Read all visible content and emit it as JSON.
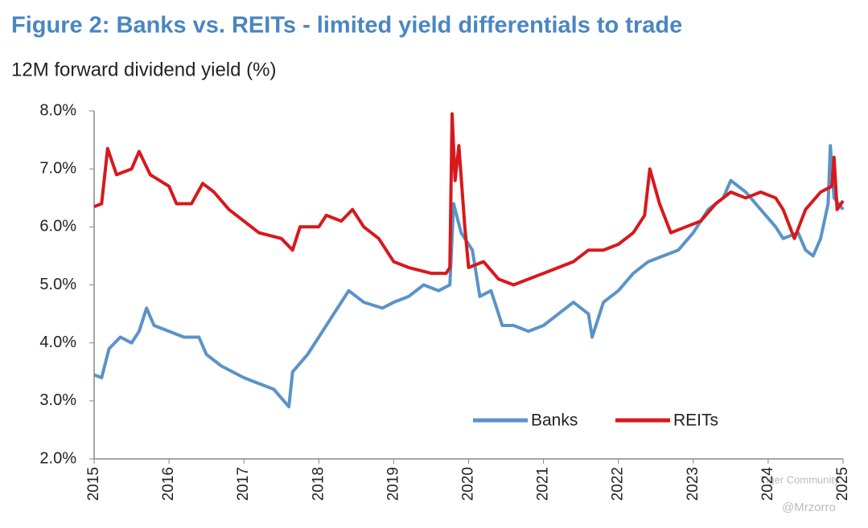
{
  "chart_data": {
    "type": "line",
    "title": "Figure 2: Banks vs. REITs - limited yield differentials to trade",
    "subtitle": "12M forward dividend yield (%)",
    "watermark": [
      "Tiger Community",
      "@Mrzorro"
    ],
    "xlim": [
      2015,
      2025
    ],
    "xticks": [
      2015,
      2016,
      2017,
      2018,
      2019,
      2020,
      2021,
      2022,
      2023,
      2024,
      2025
    ],
    "ylim": [
      2,
      8
    ],
    "yticks": [
      {
        "value": 2,
        "label": "2.0%"
      },
      {
        "value": 3,
        "label": "3.0%"
      },
      {
        "value": 4,
        "label": "4.0%"
      },
      {
        "value": 5,
        "label": "5.0%"
      },
      {
        "value": 6,
        "label": "6.0%"
      },
      {
        "value": 7,
        "label": "7.0%"
      },
      {
        "value": 8,
        "label": "8.0%"
      }
    ],
    "grid": false,
    "legend": "lower right",
    "series": [
      {
        "name": "Banks",
        "color": "#5b93c7",
        "x": [
          2015.0,
          2015.1,
          2015.2,
          2015.35,
          2015.5,
          2015.6,
          2015.7,
          2015.8,
          2016.0,
          2016.2,
          2016.4,
          2016.5,
          2016.7,
          2017.0,
          2017.2,
          2017.4,
          2017.6,
          2017.65,
          2017.85,
          2018.0,
          2018.2,
          2018.4,
          2018.6,
          2018.85,
          2019.0,
          2019.2,
          2019.4,
          2019.6,
          2019.75,
          2019.8,
          2019.9,
          2020.05,
          2020.15,
          2020.3,
          2020.45,
          2020.6,
          2020.8,
          2021.0,
          2021.2,
          2021.4,
          2021.6,
          2021.65,
          2021.8,
          2022.0,
          2022.2,
          2022.4,
          2022.6,
          2022.8,
          2023.0,
          2023.2,
          2023.4,
          2023.5,
          2023.7,
          2023.9,
          2024.1,
          2024.2,
          2024.4,
          2024.5,
          2024.6,
          2024.7,
          2024.8,
          2024.83,
          2024.88,
          2025.0
        ],
        "values": [
          3.45,
          3.4,
          3.9,
          4.1,
          4.0,
          4.2,
          4.6,
          4.3,
          4.2,
          4.1,
          4.1,
          3.8,
          3.6,
          3.4,
          3.3,
          3.2,
          2.9,
          3.5,
          3.8,
          4.1,
          4.5,
          4.9,
          4.7,
          4.6,
          4.7,
          4.8,
          5.0,
          4.9,
          5.0,
          6.4,
          5.9,
          5.6,
          4.8,
          4.9,
          4.3,
          4.3,
          4.2,
          4.3,
          4.5,
          4.7,
          4.5,
          4.1,
          4.7,
          4.9,
          5.2,
          5.4,
          5.5,
          5.6,
          5.9,
          6.3,
          6.5,
          6.8,
          6.6,
          6.3,
          6.0,
          5.8,
          5.9,
          5.6,
          5.5,
          5.8,
          6.4,
          7.4,
          6.5,
          6.3
        ]
      },
      {
        "name": "REITs",
        "color": "#d7191c",
        "x": [
          2015.0,
          2015.1,
          2015.18,
          2015.3,
          2015.5,
          2015.6,
          2015.75,
          2016.0,
          2016.1,
          2016.3,
          2016.45,
          2016.6,
          2016.8,
          2017.0,
          2017.2,
          2017.5,
          2017.65,
          2017.75,
          2018.0,
          2018.1,
          2018.3,
          2018.45,
          2018.6,
          2018.8,
          2019.0,
          2019.2,
          2019.5,
          2019.7,
          2019.75,
          2019.78,
          2019.82,
          2019.87,
          2019.95,
          2020.0,
          2020.2,
          2020.4,
          2020.6,
          2020.8,
          2021.0,
          2021.2,
          2021.4,
          2021.6,
          2021.8,
          2022.0,
          2022.2,
          2022.35,
          2022.42,
          2022.55,
          2022.7,
          2022.9,
          2023.1,
          2023.3,
          2023.5,
          2023.7,
          2023.9,
          2024.1,
          2024.2,
          2024.35,
          2024.5,
          2024.7,
          2024.85,
          2024.88,
          2024.92,
          2025.0
        ],
        "values": [
          6.35,
          6.4,
          7.35,
          6.9,
          7.0,
          7.3,
          6.9,
          6.7,
          6.4,
          6.4,
          6.75,
          6.6,
          6.3,
          6.1,
          5.9,
          5.8,
          5.6,
          6.0,
          6.0,
          6.2,
          6.1,
          6.3,
          6.0,
          5.8,
          5.4,
          5.3,
          5.2,
          5.2,
          5.3,
          7.95,
          6.8,
          7.4,
          6.0,
          5.3,
          5.4,
          5.1,
          5.0,
          5.1,
          5.2,
          5.3,
          5.4,
          5.6,
          5.6,
          5.7,
          5.9,
          6.2,
          7.0,
          6.4,
          5.9,
          6.0,
          6.1,
          6.4,
          6.6,
          6.5,
          6.6,
          6.5,
          6.3,
          5.8,
          6.3,
          6.6,
          6.7,
          7.2,
          6.3,
          6.45
        ]
      }
    ]
  }
}
